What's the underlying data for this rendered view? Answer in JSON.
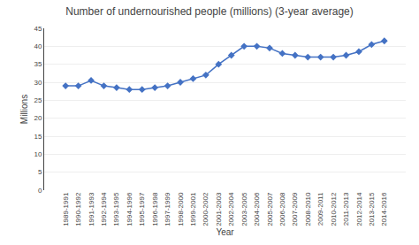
{
  "chart_data": {
    "type": "line",
    "title": "Number of undernourished people (millions) (3-year average)",
    "xlabel": "Year",
    "ylabel": "Millions",
    "categories": [
      "1989-1991",
      "1990-1992",
      "1991-1993",
      "1992-1994",
      "1993-1995",
      "1994-1996",
      "1995-1997",
      "1996-1998",
      "1997-1999",
      "1998-2000",
      "1999-2001",
      "2000-2002",
      "2001-2003",
      "2002-2004",
      "2003-2005",
      "2004-2006",
      "2005-2007",
      "2006-2008",
      "2007-2009",
      "2008-2010",
      "2009-2011",
      "2010-2012",
      "2011-2013",
      "2012-2014",
      "2013-2015",
      "2014-2016"
    ],
    "values": [
      29.0,
      29.0,
      30.5,
      29.0,
      28.5,
      28.0,
      28.0,
      28.5,
      29.0,
      30.0,
      31.0,
      32.0,
      35.0,
      37.5,
      40.0,
      40.0,
      39.5,
      38.0,
      37.5,
      37.0,
      37.0,
      37.0,
      37.5,
      38.5,
      40.5,
      41.5
    ],
    "color": "#4472C4",
    "marker": "diamond",
    "ylim": [
      0,
      45
    ],
    "yticks": [
      0,
      5,
      10,
      15,
      20,
      25,
      30,
      35,
      40,
      45
    ],
    "grid": true
  }
}
